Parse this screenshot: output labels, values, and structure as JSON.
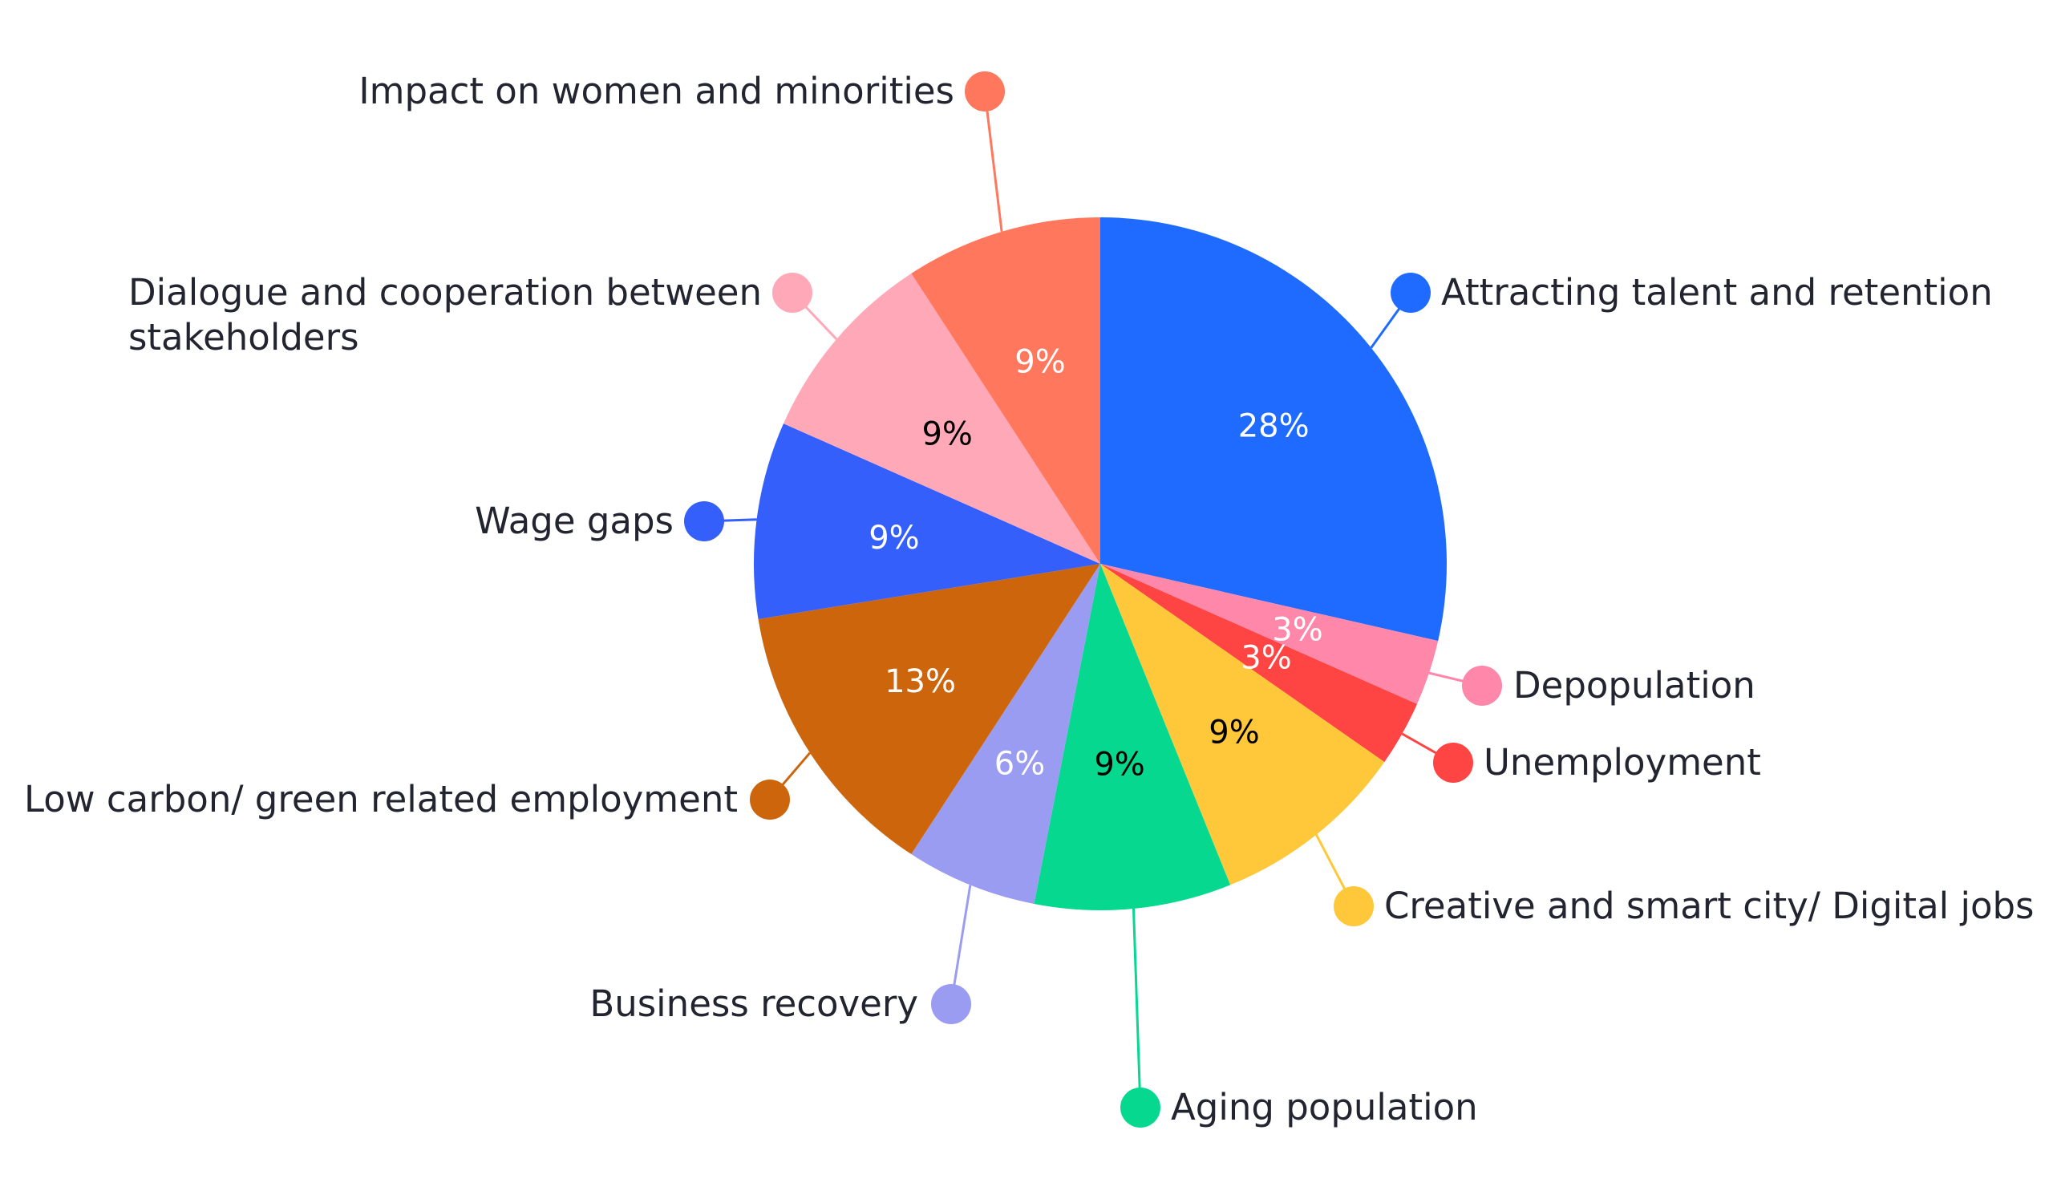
{
  "chart_data": {
    "type": "pie",
    "title": "",
    "start_angle_deg": 0,
    "direction": "clockwise",
    "slices": [
      {
        "label": "Attracting talent and retention",
        "value": 28,
        "display": "28%",
        "color": "#1f6bff",
        "text_color": "#ffffff"
      },
      {
        "label": "Depopulation",
        "value": 3,
        "display": "3%",
        "color": "#ff88aa",
        "text_color": "#ffffff"
      },
      {
        "label": "Unemployment",
        "value": 3,
        "display": "3%",
        "color": "#ff4444",
        "text_color": "#ffffff"
      },
      {
        "label": "Creative and smart city/ Digital jobs",
        "value": 9,
        "display": "9%",
        "color": "#ffc83a",
        "text_color": "#000000"
      },
      {
        "label": "Aging population",
        "value": 9,
        "display": "9%",
        "color": "#06d98f",
        "text_color": "#000000"
      },
      {
        "label": "Business recovery",
        "value": 6,
        "display": "6%",
        "color": "#9a9cf2",
        "text_color": "#ffffff"
      },
      {
        "label": "Low carbon/ green related employment",
        "value": 13,
        "display": "13%",
        "color": "#cd650d",
        "text_color": "#ffffff"
      },
      {
        "label": "Wage gaps",
        "value": 9,
        "display": "9%",
        "color": "#355ffb",
        "text_color": "#ffffff"
      },
      {
        "label": "Dialogue and cooperation between stakeholders",
        "label_lines": [
          "Dialogue and cooperation between",
          "stakeholders"
        ],
        "value": 9,
        "display": "9%",
        "color": "#ffa8b8",
        "text_color": "#000000"
      },
      {
        "label": "Impact on women and minorities",
        "value": 9,
        "display": "9%",
        "color": "#ff775c",
        "text_color": "#ffffff"
      }
    ]
  }
}
